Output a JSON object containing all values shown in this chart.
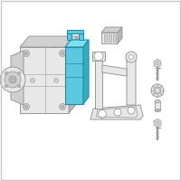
{
  "background_color": "#ffffff",
  "border_color": "#c8c8c8",
  "line_color": "#999999",
  "line_thin": "#aaaaaa",
  "blue_fill": "#5bc8e0",
  "blue_mid": "#3aaabf",
  "blue_dark": "#1e8aaa",
  "gray_light": "#e8e8e8",
  "gray_mid": "#d0d0d0",
  "gray_dark": "#b8b8b8",
  "white": "#ffffff",
  "figsize": [
    2.0,
    2.0
  ],
  "dpi": 100
}
